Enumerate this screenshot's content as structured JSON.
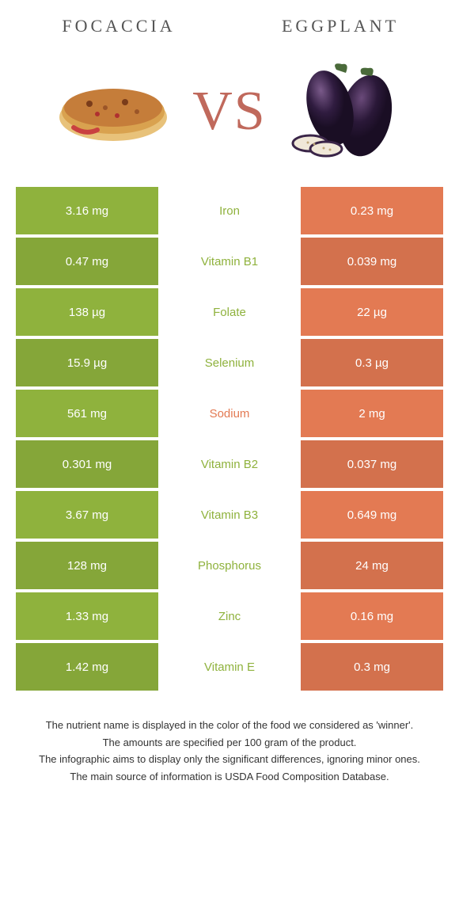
{
  "colors": {
    "left_food": "#8fb23d",
    "right_food": "#e37a53",
    "row_alt_tint": 0.93,
    "nutrient_default": "#666666"
  },
  "foods": {
    "left": {
      "name": "FOCACCIA"
    },
    "right": {
      "name": "EGGPLANT"
    }
  },
  "vs_label": "VS",
  "rows": [
    {
      "nutrient": "Iron",
      "left": "3.16 mg",
      "right": "0.23 mg",
      "winner": "left"
    },
    {
      "nutrient": "Vitamin B1",
      "left": "0.47 mg",
      "right": "0.039 mg",
      "winner": "left"
    },
    {
      "nutrient": "Folate",
      "left": "138 µg",
      "right": "22 µg",
      "winner": "left"
    },
    {
      "nutrient": "Selenium",
      "left": "15.9 µg",
      "right": "0.3 µg",
      "winner": "left"
    },
    {
      "nutrient": "Sodium",
      "left": "561 mg",
      "right": "2 mg",
      "winner": "right"
    },
    {
      "nutrient": "Vitamin B2",
      "left": "0.301 mg",
      "right": "0.037 mg",
      "winner": "left"
    },
    {
      "nutrient": "Vitamin B3",
      "left": "3.67 mg",
      "right": "0.649 mg",
      "winner": "left"
    },
    {
      "nutrient": "Phosphorus",
      "left": "128 mg",
      "right": "24 mg",
      "winner": "left"
    },
    {
      "nutrient": "Zinc",
      "left": "1.33 mg",
      "right": "0.16 mg",
      "winner": "left"
    },
    {
      "nutrient": "Vitamin E",
      "left": "1.42 mg",
      "right": "0.3 mg",
      "winner": "left"
    }
  ],
  "footnotes": [
    "The nutrient name is displayed in the color of the food we considered as 'winner'.",
    "The amounts are specified per 100 gram of the product.",
    "The infographic aims to display only the significant differences, ignoring minor ones.",
    "The main source of information is USDA Food Composition Database."
  ]
}
